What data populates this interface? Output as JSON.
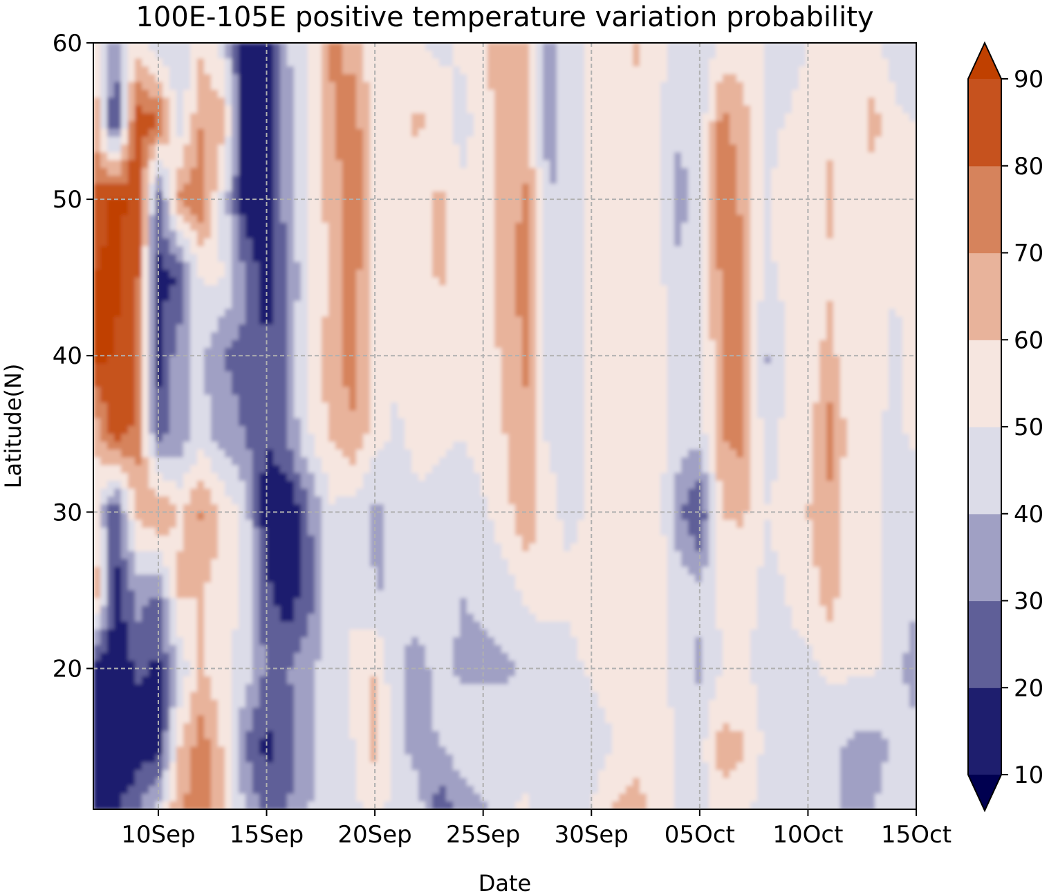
{
  "chart_data": {
    "type": "heatmap",
    "title": "100E-105E positive temperature variation probability",
    "xlabel": "Date",
    "ylabel": "Latitude(N)",
    "x_ticks": [
      "10Sep",
      "15Sep",
      "20Sep",
      "25Sep",
      "30Sep",
      "05Oct",
      "10Oct",
      "15Oct"
    ],
    "y_ticks": [
      20,
      30,
      40,
      50,
      60
    ],
    "xlim": [
      "07Sep",
      "15Oct"
    ],
    "ylim": [
      11,
      60
    ],
    "grid": true,
    "colorbar": {
      "levels": [
        10,
        20,
        30,
        40,
        50,
        60,
        70,
        80,
        90
      ],
      "tick_labels": [
        "10",
        "20",
        "30",
        "40",
        "50",
        "60",
        "70",
        "80",
        "90"
      ],
      "colors": [
        "#1e1e6e",
        "#5f5f98",
        "#a0a0c4",
        "#dcdce8",
        "#f6e6e0",
        "#e8b39b",
        "#d6835c",
        "#c6521e"
      ],
      "under_color": "#000050",
      "over_color": "#c04000",
      "extend": "both"
    },
    "date_columns": [
      "07Sep",
      "08Sep",
      "09Sep",
      "10Sep",
      "11Sep",
      "12Sep",
      "13Sep",
      "14Sep",
      "15Sep",
      "16Sep",
      "17Sep",
      "18Sep",
      "19Sep",
      "20Sep",
      "21Sep",
      "22Sep",
      "23Sep",
      "24Sep",
      "25Sep",
      "26Sep",
      "27Sep",
      "28Sep",
      "29Sep",
      "30Sep",
      "01Oct",
      "02Oct",
      "03Oct",
      "04Oct",
      "05Oct",
      "06Oct",
      "07Oct",
      "08Oct",
      "09Oct",
      "10Oct",
      "11Oct",
      "12Oct",
      "13Oct",
      "14Oct",
      "15Oct"
    ],
    "latitude_rows": [
      60,
      55,
      50,
      45,
      40,
      35,
      30,
      25,
      20,
      15,
      11
    ],
    "values": [
      [
        62,
        35,
        55,
        44,
        40,
        58,
        45,
        12,
        15,
        40,
        52,
        72,
        66,
        52,
        55,
        50,
        48,
        52,
        57,
        70,
        60,
        38,
        45,
        52,
        50,
        62,
        55,
        45,
        42,
        52,
        55,
        50,
        48,
        50,
        55,
        52,
        52,
        46,
        42
      ],
      [
        70,
        15,
        88,
        80,
        45,
        70,
        65,
        10,
        12,
        35,
        55,
        68,
        76,
        55,
        58,
        62,
        54,
        46,
        55,
        66,
        62,
        35,
        46,
        52,
        50,
        56,
        52,
        42,
        42,
        74,
        64,
        48,
        50,
        52,
        58,
        52,
        64,
        52,
        50
      ],
      [
        85,
        92,
        88,
        22,
        72,
        78,
        46,
        12,
        10,
        38,
        52,
        65,
        78,
        58,
        52,
        55,
        62,
        52,
        52,
        64,
        72,
        40,
        42,
        54,
        58,
        60,
        54,
        36,
        44,
        78,
        68,
        48,
        54,
        52,
        62,
        52,
        55,
        52,
        58
      ],
      [
        90,
        92,
        85,
        18,
        20,
        52,
        50,
        32,
        12,
        30,
        52,
        60,
        76,
        55,
        52,
        52,
        62,
        52,
        52,
        68,
        74,
        46,
        42,
        52,
        55,
        58,
        54,
        42,
        48,
        72,
        72,
        48,
        52,
        54,
        58,
        52,
        56,
        50,
        55
      ],
      [
        92,
        90,
        80,
        15,
        38,
        42,
        30,
        26,
        22,
        32,
        55,
        66,
        76,
        54,
        52,
        56,
        55,
        50,
        55,
        62,
        72,
        48,
        46,
        52,
        57,
        60,
        55,
        46,
        45,
        70,
        72,
        38,
        50,
        54,
        64,
        52,
        54,
        48,
        52
      ],
      [
        62,
        85,
        78,
        25,
        34,
        44,
        34,
        30,
        20,
        32,
        50,
        62,
        68,
        55,
        48,
        54,
        52,
        50,
        55,
        60,
        68,
        48,
        46,
        52,
        60,
        60,
        55,
        46,
        44,
        70,
        74,
        46,
        52,
        54,
        74,
        54,
        52,
        48,
        52
      ],
      [
        55,
        20,
        62,
        72,
        58,
        72,
        58,
        46,
        12,
        10,
        30,
        48,
        46,
        38,
        42,
        48,
        46,
        44,
        48,
        56,
        68,
        54,
        46,
        52,
        55,
        60,
        56,
        34,
        18,
        60,
        62,
        50,
        52,
        60,
        68,
        52,
        52,
        46,
        44
      ],
      [
        75,
        15,
        35,
        30,
        62,
        60,
        55,
        48,
        22,
        12,
        26,
        46,
        48,
        40,
        40,
        46,
        44,
        40,
        42,
        46,
        52,
        58,
        52,
        60,
        56,
        52,
        58,
        46,
        42,
        52,
        54,
        48,
        50,
        54,
        66,
        52,
        52,
        46,
        44
      ],
      [
        18,
        10,
        22,
        18,
        42,
        62,
        52,
        46,
        28,
        30,
        38,
        46,
        52,
        60,
        42,
        36,
        44,
        38,
        38,
        38,
        42,
        40,
        46,
        52,
        54,
        58,
        52,
        46,
        38,
        50,
        52,
        46,
        48,
        48,
        52,
        52,
        52,
        46,
        32
      ],
      [
        10,
        10,
        12,
        15,
        60,
        76,
        58,
        30,
        16,
        26,
        38,
        44,
        50,
        64,
        42,
        36,
        40,
        46,
        50,
        46,
        42,
        42,
        40,
        44,
        50,
        54,
        56,
        50,
        46,
        64,
        62,
        48,
        48,
        46,
        44,
        38,
        36,
        42,
        46
      ],
      [
        18,
        16,
        30,
        44,
        70,
        76,
        64,
        38,
        26,
        30,
        40,
        44,
        48,
        52,
        48,
        44,
        22,
        34,
        38,
        48,
        52,
        44,
        44,
        50,
        60,
        66,
        56,
        48,
        44,
        58,
        52,
        46,
        46,
        44,
        42,
        36,
        40,
        44,
        48
      ]
    ]
  }
}
